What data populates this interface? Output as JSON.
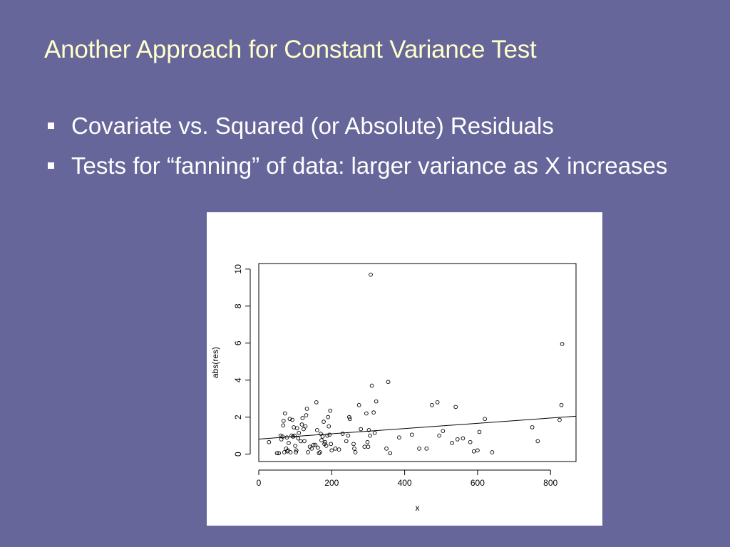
{
  "slide": {
    "title": "Another Approach for Constant Variance Test",
    "bullets": [
      "Covariate vs. Squared (or Absolute) Residuals",
      "Tests for “fanning” of data:  larger variance as X increases"
    ],
    "colors": {
      "background": "#66669a",
      "title": "#ffffcc",
      "text": "#ffffff",
      "plot_background": "#ffffff"
    }
  },
  "chart_data": {
    "type": "scatter",
    "title": "",
    "xlabel": "x",
    "ylabel": "abs(res)",
    "xlim": [
      0,
      870
    ],
    "ylim": [
      -0.4,
      10.3
    ],
    "xticks": [
      0,
      200,
      400,
      600,
      800
    ],
    "yticks": [
      0,
      2,
      4,
      6,
      8,
      10
    ],
    "grid": false,
    "marker": "open-circle",
    "fit_line": {
      "x": [
        -10,
        870
      ],
      "y": [
        0.8,
        2.05
      ]
    },
    "points": [
      [
        28,
        0.65
      ],
      [
        50,
        0.05
      ],
      [
        55,
        0.05
      ],
      [
        60,
        1.0
      ],
      [
        62,
        0.8
      ],
      [
        65,
        0.95
      ],
      [
        67,
        1.55
      ],
      [
        68,
        1.8
      ],
      [
        70,
        0.1
      ],
      [
        72,
        2.2
      ],
      [
        75,
        0.3
      ],
      [
        77,
        0.9
      ],
      [
        78,
        0.15
      ],
      [
        80,
        0.2
      ],
      [
        82,
        0.6
      ],
      [
        85,
        1.9
      ],
      [
        87,
        0.1
      ],
      [
        90,
        1.0
      ],
      [
        92,
        1.85
      ],
      [
        94,
        0.95
      ],
      [
        96,
        1.45
      ],
      [
        98,
        1.0
      ],
      [
        100,
        0.45
      ],
      [
        102,
        0.1
      ],
      [
        103,
        0.2
      ],
      [
        105,
        1.4
      ],
      [
        108,
        0.85
      ],
      [
        110,
        1.15
      ],
      [
        115,
        0.7
      ],
      [
        118,
        1.6
      ],
      [
        120,
        1.95
      ],
      [
        123,
        1.35
      ],
      [
        125,
        0.7
      ],
      [
        128,
        1.5
      ],
      [
        130,
        2.1
      ],
      [
        132,
        2.45
      ],
      [
        135,
        0.1
      ],
      [
        140,
        0.4
      ],
      [
        145,
        0.3
      ],
      [
        150,
        0.5
      ],
      [
        155,
        0.5
      ],
      [
        158,
        2.8
      ],
      [
        160,
        1.3
      ],
      [
        162,
        0.35
      ],
      [
        165,
        0.05
      ],
      [
        168,
        0.1
      ],
      [
        170,
        1.1
      ],
      [
        172,
        0.75
      ],
      [
        175,
        0.95
      ],
      [
        178,
        1.75
      ],
      [
        180,
        0.55
      ],
      [
        182,
        0.65
      ],
      [
        185,
        0.45
      ],
      [
        188,
        1.0
      ],
      [
        190,
        2.0
      ],
      [
        192,
        1.5
      ],
      [
        194,
        1.05
      ],
      [
        196,
        2.35
      ],
      [
        198,
        0.55
      ],
      [
        200,
        0.2
      ],
      [
        210,
        0.3
      ],
      [
        220,
        0.25
      ],
      [
        230,
        1.1
      ],
      [
        240,
        0.7
      ],
      [
        245,
        1.0
      ],
      [
        248,
        2.0
      ],
      [
        250,
        1.9
      ],
      [
        260,
        0.55
      ],
      [
        262,
        0.3
      ],
      [
        265,
        0.1
      ],
      [
        275,
        2.65
      ],
      [
        280,
        1.35
      ],
      [
        290,
        0.4
      ],
      [
        295,
        2.2
      ],
      [
        298,
        0.65
      ],
      [
        300,
        0.4
      ],
      [
        302,
        1.3
      ],
      [
        305,
        1.0
      ],
      [
        307,
        9.7
      ],
      [
        310,
        3.7
      ],
      [
        315,
        2.25
      ],
      [
        318,
        1.15
      ],
      [
        322,
        2.85
      ],
      [
        350,
        0.3
      ],
      [
        355,
        3.9
      ],
      [
        360,
        0.05
      ],
      [
        385,
        0.9
      ],
      [
        420,
        1.05
      ],
      [
        440,
        0.3
      ],
      [
        460,
        0.3
      ],
      [
        475,
        2.65
      ],
      [
        490,
        2.8
      ],
      [
        495,
        1.0
      ],
      [
        505,
        1.25
      ],
      [
        530,
        0.6
      ],
      [
        540,
        2.55
      ],
      [
        545,
        0.8
      ],
      [
        560,
        0.85
      ],
      [
        580,
        0.65
      ],
      [
        590,
        0.15
      ],
      [
        600,
        0.2
      ],
      [
        605,
        1.2
      ],
      [
        620,
        1.9
      ],
      [
        640,
        0.1
      ],
      [
        750,
        1.45
      ],
      [
        765,
        0.7
      ],
      [
        825,
        1.85
      ],
      [
        830,
        2.65
      ],
      [
        832,
        5.95
      ]
    ]
  }
}
